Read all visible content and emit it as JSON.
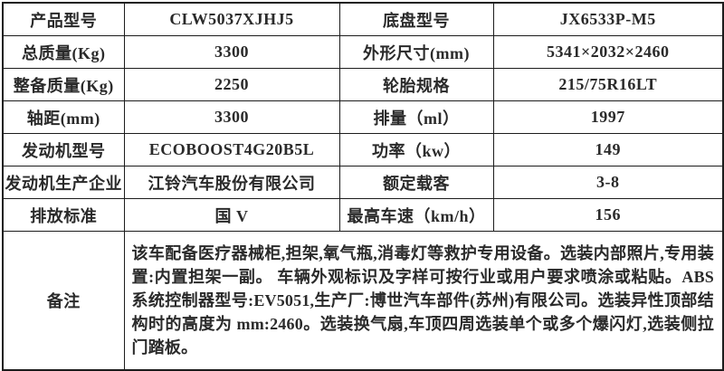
{
  "colors": {
    "border": "#1c1c1c",
    "text": "#2a2a2a",
    "background": "#ffffff"
  },
  "spec_rows": [
    [
      "产品型号",
      "CLW5037XJHJ5",
      "底盘型号",
      "JX6533P-M5"
    ],
    [
      "总质量(Kg)",
      "3300",
      "外形尺寸(mm)",
      "5341×2032×2460"
    ],
    [
      "整备质量(Kg)",
      "2250",
      "轮胎规格",
      "215/75R16LT"
    ],
    [
      "轴距(mm)",
      "3300",
      "排量（ml）",
      "1997"
    ],
    [
      "发动机型号",
      "ECOBOOST4G20B5L",
      "功率（kw）",
      "149"
    ],
    [
      "发动机生产企业",
      "江铃汽车股份有限公司",
      "额定载客",
      "3-8"
    ],
    [
      "排放标准",
      "国 V",
      "最高车速（km/h）",
      "156"
    ]
  ],
  "remark": {
    "label": "备注",
    "text": "该车配备医疗器械柜,担架,氧气瓶,消毒灯等救护专用设备。选装内部照片,专用装置:内置担架一副。 车辆外观标识及字样可按行业或用户要求喷涂或粘贴。ABS 系统控制器型号:EV5051,生产厂:博世汽车部件(苏州)有限公司。选装异性顶部结构时的高度为 mm:2460。选装换气扇,车顶四周选装单个或多个爆闪灯,选装侧拉门踏板。"
  }
}
